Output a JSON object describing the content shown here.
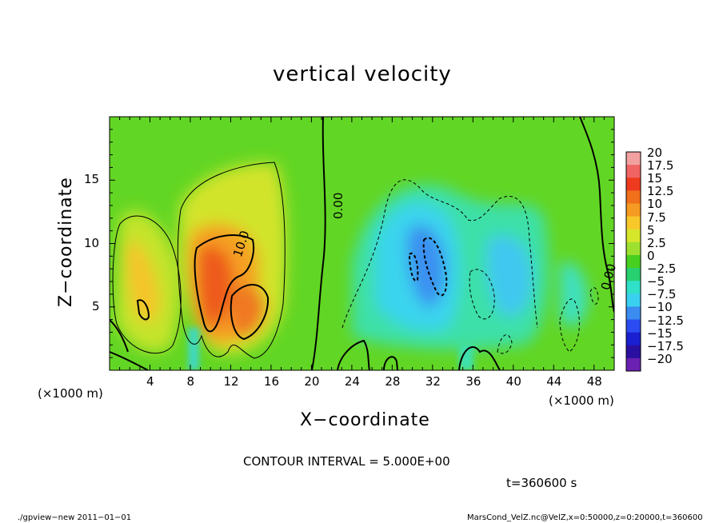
{
  "title": "vertical velocity",
  "xlabel": "X−coordinate",
  "ylabel": "Z−coordinate",
  "x_unit": "(×1000 m)",
  "z_unit": "(×1000 m)",
  "contour_interval_text": "CONTOUR INTERVAL = 5.000E+00",
  "time_text": "t=360600 s",
  "footer_left": "./gpview−new   2011−01−01",
  "footer_right": "MarsCond_VelZ.nc@VelZ,x=0:50000,z=0:20000,t=360600",
  "contour_labels": [
    "10.0",
    "0.00",
    "0.00"
  ],
  "chart_data": {
    "type": "heatmap",
    "title": "vertical velocity",
    "xlabel": "X−coordinate",
    "ylabel": "Z−coordinate",
    "x_ticks": [
      4,
      8,
      12,
      16,
      20,
      24,
      28,
      32,
      36,
      40,
      44,
      48
    ],
    "y_ticks": [
      5,
      10,
      15
    ],
    "xlim": [
      0,
      50
    ],
    "ylim": [
      0,
      20
    ],
    "colorbar_levels": [
      "20",
      "17.5",
      "15",
      "12.5",
      "10",
      "7.5",
      "5",
      "2.5",
      "0",
      "−2.5",
      "−5",
      "−7.5",
      "−10",
      "−12.5",
      "−15",
      "−17.5",
      "−20"
    ],
    "colorbar_colors": [
      "#f3a0a0",
      "#f06464",
      "#ee3a1e",
      "#f0701c",
      "#f59a22",
      "#f8c82a",
      "#d6e62a",
      "#9ee030",
      "#48d020",
      "#28d070",
      "#30e0c8",
      "#3ad0f0",
      "#3a8cf0",
      "#2a4cf0",
      "#1a20d0",
      "#2a10a0",
      "#6a20b0"
    ],
    "features": [
      {
        "kind": "updraft",
        "x": 10.5,
        "z": 7.0,
        "peak": 12.5
      },
      {
        "kind": "updraft",
        "x": 14.0,
        "z": 5.0,
        "peak": 10.0
      },
      {
        "kind": "updraft",
        "x": 3.5,
        "z": 6.5,
        "peak": 7.5
      },
      {
        "kind": "downdraft",
        "x": 31.0,
        "z": 8.5,
        "peak": -10.0
      },
      {
        "kind": "downdraft",
        "x": 40.0,
        "z": 7.0,
        "peak": -7.5
      }
    ]
  }
}
